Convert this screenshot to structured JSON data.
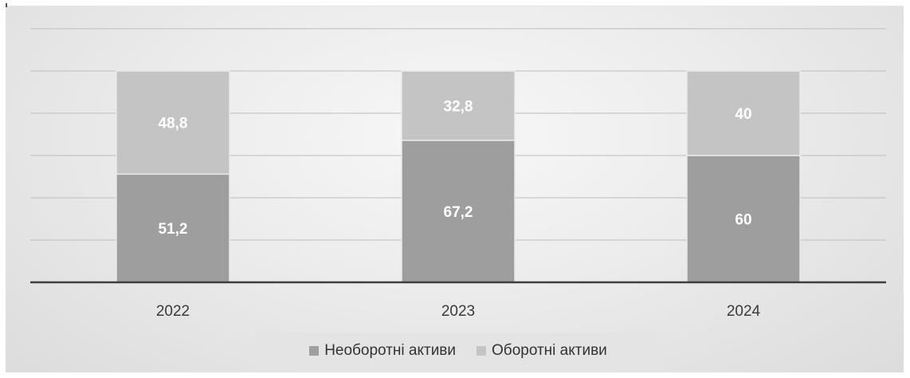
{
  "chart_data": {
    "type": "bar",
    "stacked": true,
    "categories": [
      "2022",
      "2023",
      "2024"
    ],
    "series": [
      {
        "name": "Необоротні активи",
        "values": [
          51.2,
          67.2,
          60
        ],
        "labels": [
          "51,2",
          "67,2",
          "60"
        ],
        "color": "#9e9e9e"
      },
      {
        "name": "Оборотні активи",
        "values": [
          48.8,
          32.8,
          40
        ],
        "labels": [
          "48,8",
          "32,8",
          "40"
        ],
        "color": "#c4c4c4"
      }
    ],
    "ylim": [
      0,
      120
    ],
    "grid": true,
    "legend": "bottom",
    "title": "",
    "xlabel": "",
    "ylabel": ""
  }
}
